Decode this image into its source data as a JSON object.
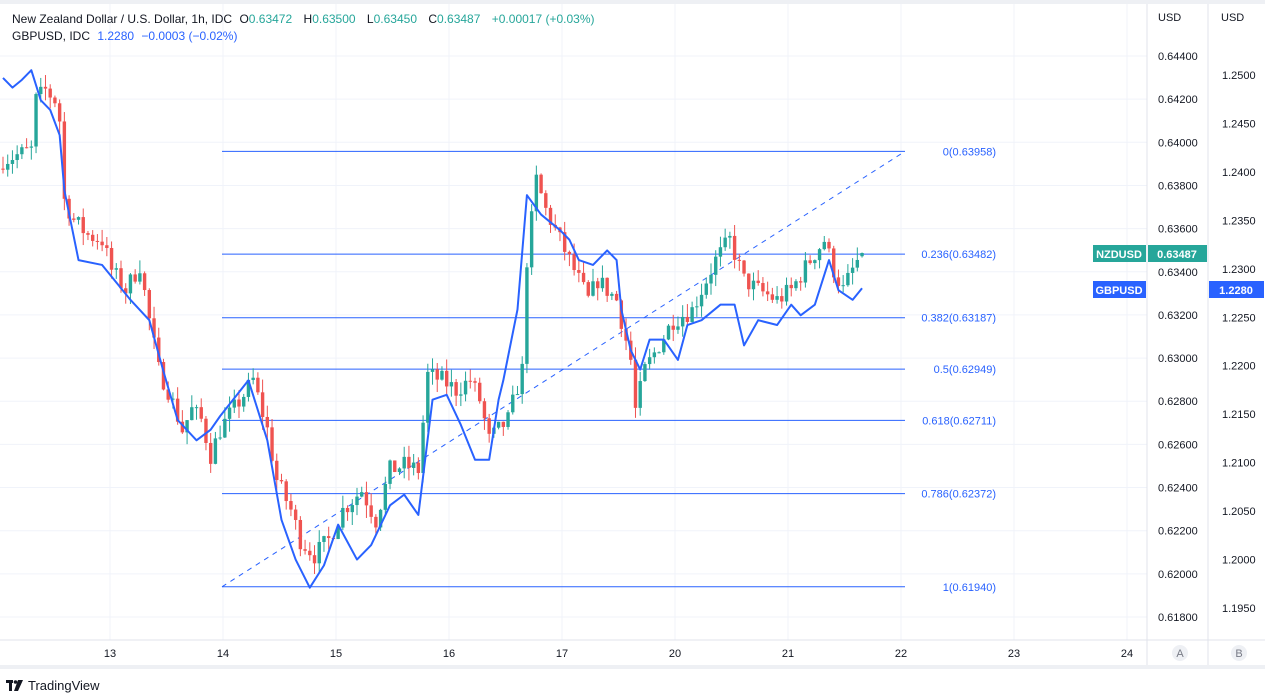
{
  "legend": {
    "main_title": "New Zealand Dollar / U.S. Dollar, 1h, IDC",
    "o_label": "O",
    "o": "0.63472",
    "h_label": "H",
    "h": "0.63500",
    "l_label": "L",
    "l": "0.63450",
    "c_label": "C",
    "c": "0.63487",
    "change": "+0.00017 (+0.03%)",
    "compare_title": "GBPUSD, IDC",
    "compare_value": "1.2280",
    "compare_change": "−0.0003 (−0.02%)"
  },
  "axes": {
    "left_currency": "USD",
    "right_currency": "USD",
    "scale_a": "A",
    "scale_b": "B"
  },
  "tags": {
    "nzd_symbol": "NZDUSD",
    "nzd_value": "0.63487",
    "gbp_symbol": "GBPUSD",
    "gbp_value": "1.2280"
  },
  "colors": {
    "up": "#26a69a",
    "down": "#ef5350",
    "compare": "#2962ff",
    "fib": "#2962ff"
  },
  "brand": "TradingView",
  "chart_data": {
    "type": "candlestick",
    "interval": "1h",
    "primary": {
      "name": "NZDUSD",
      "anchors_bar_close": [
        [
          0,
          0.63918
        ],
        [
          6,
          0.63964
        ],
        [
          7,
          0.64196
        ],
        [
          9,
          0.64242
        ],
        [
          11,
          0.64196
        ],
        [
          12,
          0.64103
        ],
        [
          13,
          0.63733
        ],
        [
          15,
          0.6364
        ],
        [
          18,
          0.6357
        ],
        [
          21,
          0.63547
        ],
        [
          23,
          0.63408
        ],
        [
          26,
          0.63315
        ],
        [
          29,
          0.63431
        ],
        [
          31,
          0.63176
        ],
        [
          33,
          0.62945
        ],
        [
          35,
          0.62852
        ],
        [
          38,
          0.62667
        ],
        [
          40,
          0.6276
        ],
        [
          42,
          0.62713
        ],
        [
          44,
          0.6255
        ],
        [
          46,
          0.62667
        ],
        [
          48,
          0.62736
        ],
        [
          51,
          0.62829
        ],
        [
          53,
          0.62898
        ],
        [
          56,
          0.62667
        ],
        [
          58,
          0.62435
        ],
        [
          61,
          0.62296
        ],
        [
          63,
          0.62157
        ],
        [
          66,
          0.62087
        ],
        [
          69,
          0.62157
        ],
        [
          72,
          0.62296
        ],
        [
          76,
          0.62388
        ],
        [
          79,
          0.62249
        ],
        [
          82,
          0.62481
        ],
        [
          85,
          0.62504
        ],
        [
          88,
          0.62481
        ],
        [
          90,
          0.62921
        ],
        [
          93,
          0.62898
        ],
        [
          96,
          0.62852
        ],
        [
          99,
          0.62898
        ],
        [
          101,
          0.62806
        ],
        [
          103,
          0.6262
        ],
        [
          105,
          0.62667
        ],
        [
          107,
          0.62713
        ],
        [
          110,
          0.62945
        ],
        [
          111,
          0.63454
        ],
        [
          113,
          0.63825
        ],
        [
          115,
          0.63686
        ],
        [
          118,
          0.63547
        ],
        [
          120,
          0.63454
        ],
        [
          122,
          0.63362
        ],
        [
          124,
          0.63269
        ],
        [
          126,
          0.63362
        ],
        [
          130,
          0.63269
        ],
        [
          133,
          0.62991
        ],
        [
          134,
          0.62759
        ],
        [
          136,
          0.62945
        ],
        [
          139,
          0.63061
        ],
        [
          142,
          0.63176
        ],
        [
          146,
          0.63223
        ],
        [
          149,
          0.63362
        ],
        [
          151,
          0.63454
        ],
        [
          154,
          0.63547
        ],
        [
          157,
          0.63362
        ],
        [
          160,
          0.63315
        ],
        [
          164,
          0.63269
        ],
        [
          167,
          0.63315
        ],
        [
          171,
          0.63454
        ],
        [
          174,
          0.63547
        ],
        [
          176,
          0.63408
        ],
        [
          178,
          0.63315
        ],
        [
          180,
          0.63408
        ],
        [
          182,
          0.63487
        ]
      ]
    },
    "compare": {
      "name": "GBPUSD",
      "anchors_bar_close": [
        [
          0,
          1.2497
        ],
        [
          2,
          1.2487
        ],
        [
          4,
          1.2495
        ],
        [
          6,
          1.2505
        ],
        [
          8,
          1.2474
        ],
        [
          10,
          1.2464
        ],
        [
          12,
          1.2438
        ],
        [
          13,
          1.2381
        ],
        [
          16,
          1.2309
        ],
        [
          21,
          1.2304
        ],
        [
          27,
          1.2268
        ],
        [
          31,
          1.2247
        ],
        [
          34,
          1.2194
        ],
        [
          37,
          1.2144
        ],
        [
          41,
          1.2123
        ],
        [
          44,
          1.2134
        ],
        [
          46,
          1.2148
        ],
        [
          52,
          1.2185
        ],
        [
          56,
          1.2123
        ],
        [
          59,
          1.2041
        ],
        [
          62,
          1.2
        ],
        [
          65,
          1.1971
        ],
        [
          68,
          1.1994
        ],
        [
          71,
          1.2036
        ],
        [
          75,
          1.2
        ],
        [
          78,
          1.2015
        ],
        [
          82,
          1.2056
        ],
        [
          85,
          1.2067
        ],
        [
          88,
          1.2046
        ],
        [
          91,
          1.2165
        ],
        [
          94,
          1.217
        ],
        [
          97,
          1.2139
        ],
        [
          100,
          1.2103
        ],
        [
          103,
          1.2103
        ],
        [
          105,
          1.2165
        ],
        [
          106,
          1.2185
        ],
        [
          109,
          1.2258
        ],
        [
          111,
          1.2376
        ],
        [
          114,
          1.2356
        ],
        [
          118,
          1.234
        ],
        [
          120,
          1.233
        ],
        [
          122,
          1.2309
        ],
        [
          125,
          1.2304
        ],
        [
          128,
          1.2319
        ],
        [
          130,
          1.2309
        ],
        [
          131,
          1.2258
        ],
        [
          133,
          1.2216
        ],
        [
          135,
          1.2196
        ],
        [
          137,
          1.2227
        ],
        [
          140,
          1.2227
        ],
        [
          143,
          1.2206
        ],
        [
          145,
          1.2242
        ],
        [
          148,
          1.2247
        ],
        [
          152,
          1.2263
        ],
        [
          155,
          1.2263
        ],
        [
          157,
          1.2221
        ],
        [
          160,
          1.2247
        ],
        [
          164,
          1.2242
        ],
        [
          167,
          1.2263
        ],
        [
          169,
          1.2252
        ],
        [
          172,
          1.2263
        ],
        [
          175,
          1.2309
        ],
        [
          177,
          1.2278
        ],
        [
          180,
          1.2268
        ],
        [
          182,
          1.228
        ]
      ]
    },
    "x_ticks": [
      "13",
      "14",
      "15",
      "16",
      "17",
      "20",
      "21",
      "22",
      "23",
      "24"
    ],
    "y_ticks_primary": [
      "0.64400",
      "0.64200",
      "0.64000",
      "0.63800",
      "0.63600",
      "0.63400",
      "0.63200",
      "0.63000",
      "0.62800",
      "0.62600",
      "0.62400",
      "0.62200",
      "0.62000",
      "0.61800"
    ],
    "y_ticks_compare": [
      "1.2500",
      "1.2450",
      "1.2400",
      "1.2350",
      "1.2300",
      "1.2250",
      "1.2200",
      "1.2150",
      "1.2100",
      "1.2050",
      "1.2000",
      "1.1950"
    ],
    "fibonacci": {
      "start_price": 0.6194,
      "end_price": 0.63958,
      "levels": [
        {
          "ratio": 0,
          "price": 0.63958,
          "label": "0(0.63958)"
        },
        {
          "ratio": 0.236,
          "price": 0.63482,
          "label": "0.236(0.63482)"
        },
        {
          "ratio": 0.382,
          "price": 0.63187,
          "label": "0.382(0.63187)"
        },
        {
          "ratio": 0.5,
          "price": 0.62949,
          "label": "0.5(0.62949)"
        },
        {
          "ratio": 0.618,
          "price": 0.62711,
          "label": "0.618(0.62711)"
        },
        {
          "ratio": 0.786,
          "price": 0.62372,
          "label": "0.786(0.62372)"
        },
        {
          "ratio": 1,
          "price": 0.6194,
          "label": "1(0.61940)"
        }
      ]
    }
  }
}
